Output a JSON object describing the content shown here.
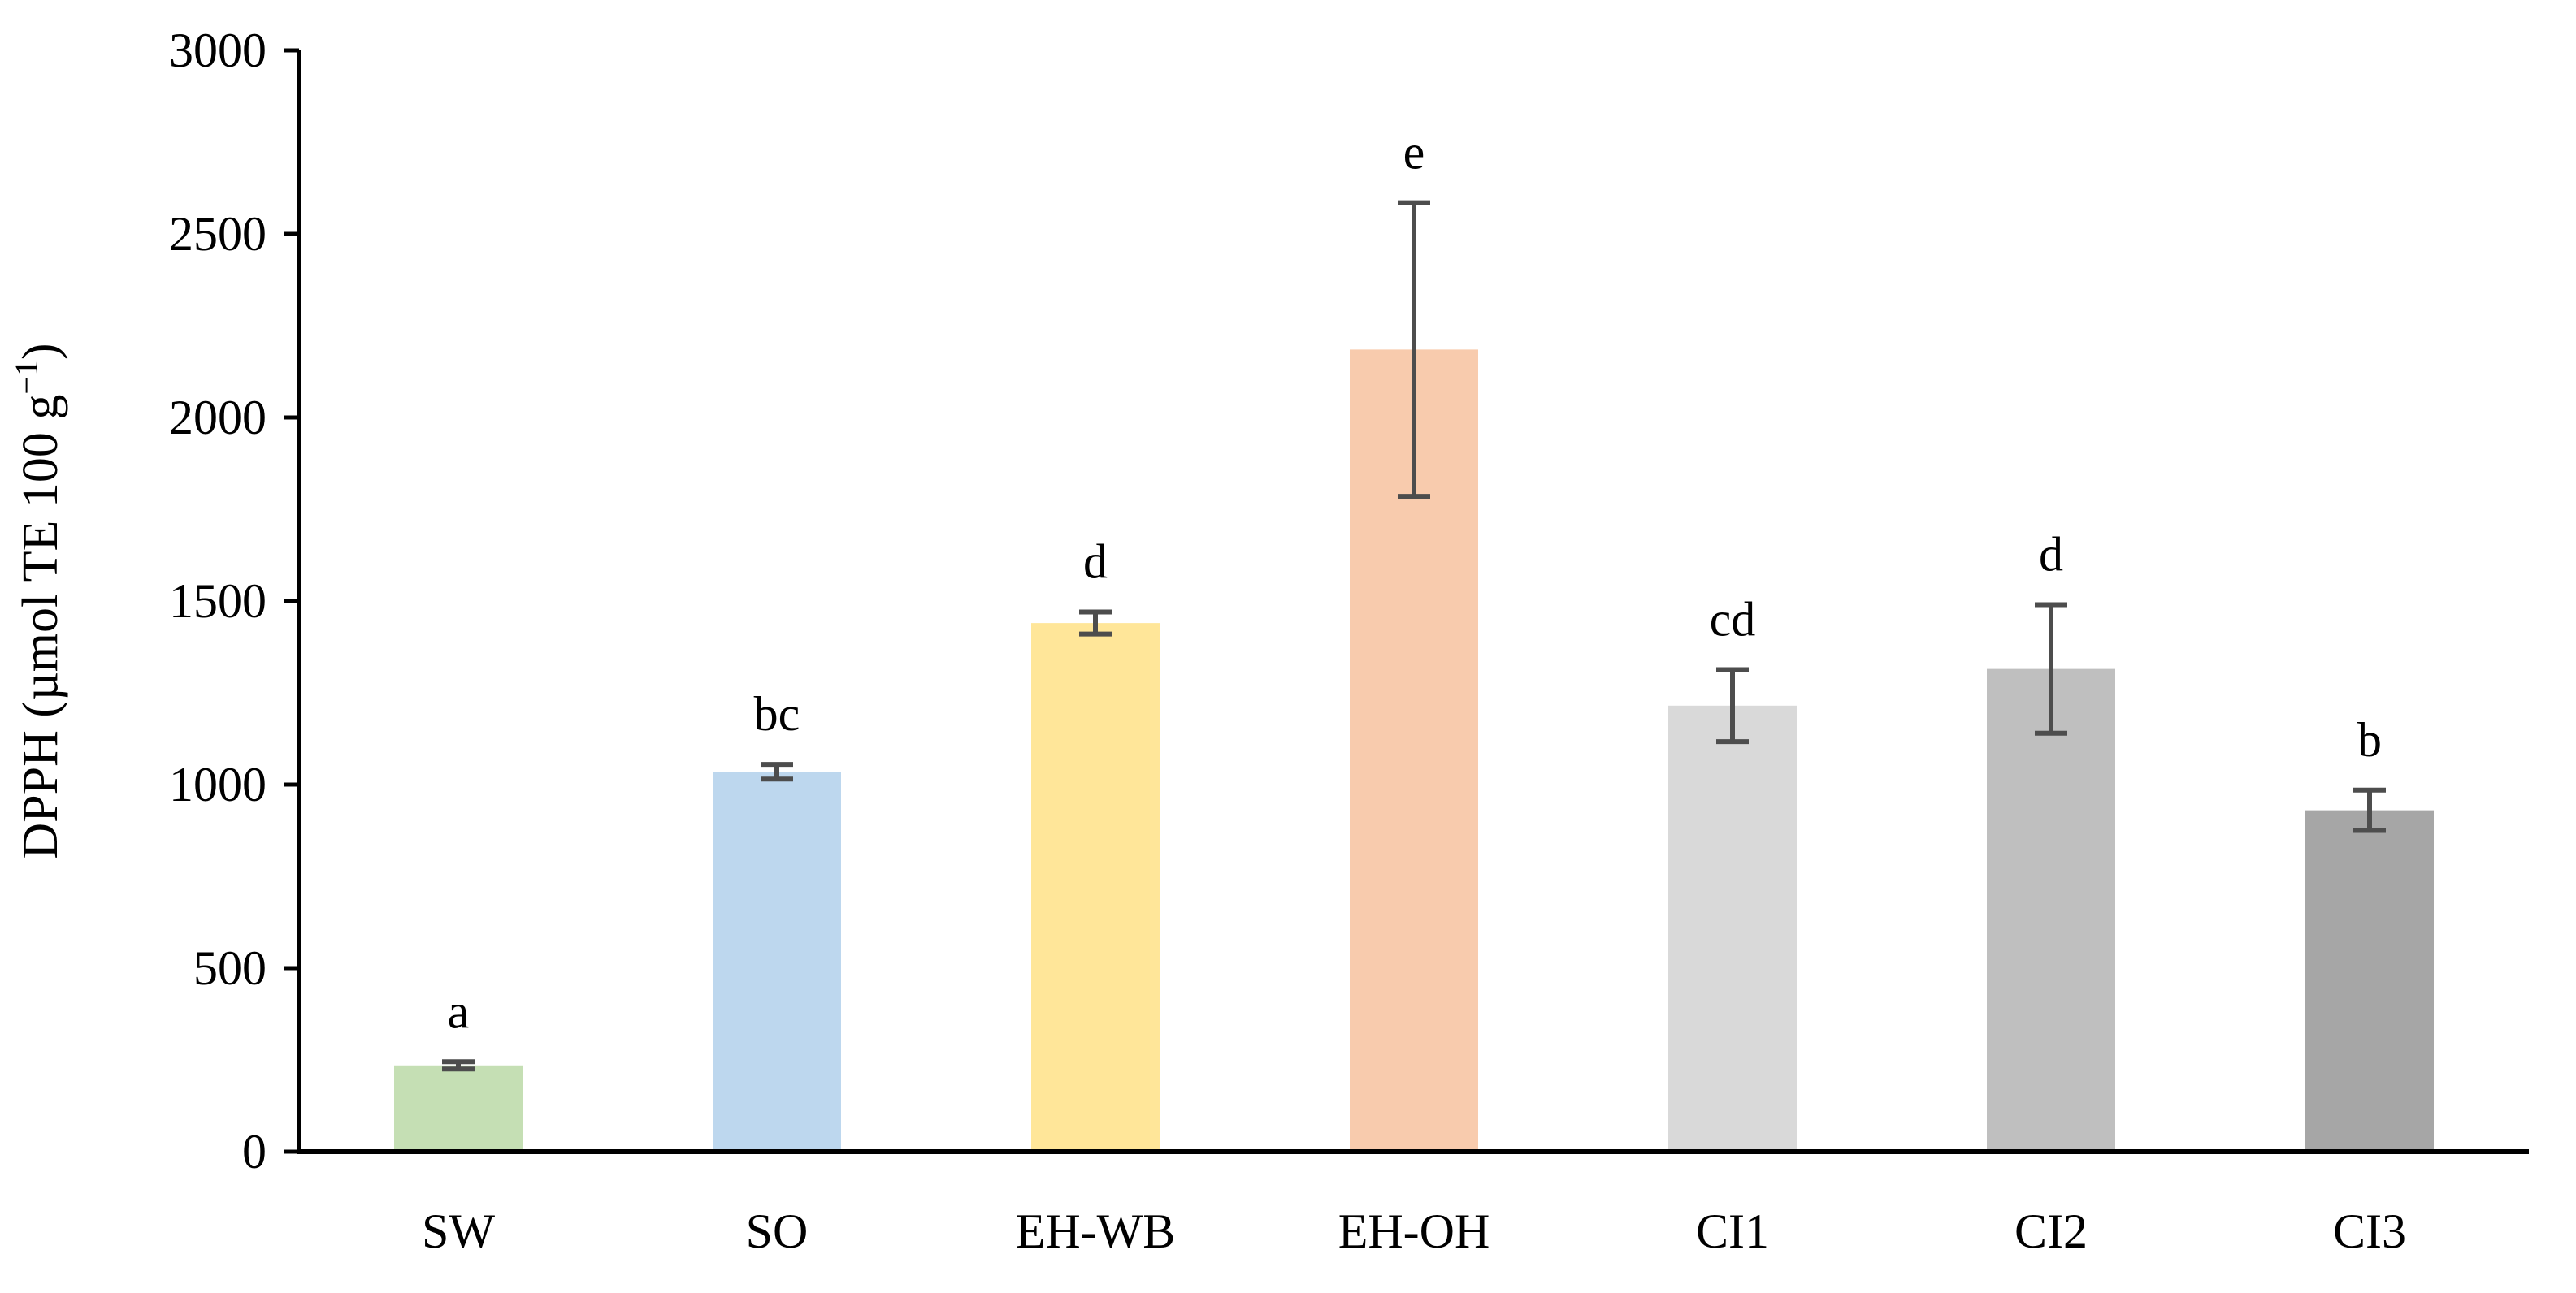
{
  "chart_data": {
    "type": "bar",
    "title": "",
    "xlabel": "",
    "ylabel": "DPPH (µmol TE 100 g",
    "ylabel_superscript": "−1",
    "ylabel_suffix": ")",
    "ylim": [
      0,
      3000
    ],
    "yticks": [
      0,
      500,
      1000,
      1500,
      2000,
      2500,
      3000
    ],
    "grid": false,
    "legend": "none",
    "categories": [
      "SW",
      "SO",
      "EH-WB",
      "EH-OH",
      "CI1",
      "CI2",
      "CI3"
    ],
    "values": [
      235,
      1035,
      1440,
      2185,
      1215,
      1315,
      930
    ],
    "error": [
      10,
      20,
      30,
      400,
      98,
      175,
      55
    ],
    "significance_letters": [
      "a",
      "bc",
      "d",
      "e",
      "cd",
      "d",
      "b"
    ],
    "colors": [
      "#C5DFB4",
      "#BDD7EE",
      "#FFE699",
      "#F8CBAD",
      "#D9D9D9",
      "#BFBFBF",
      "#A6A6A6"
    ],
    "error_bar_color": "#4D4D4D",
    "axis_color": "#000000"
  }
}
